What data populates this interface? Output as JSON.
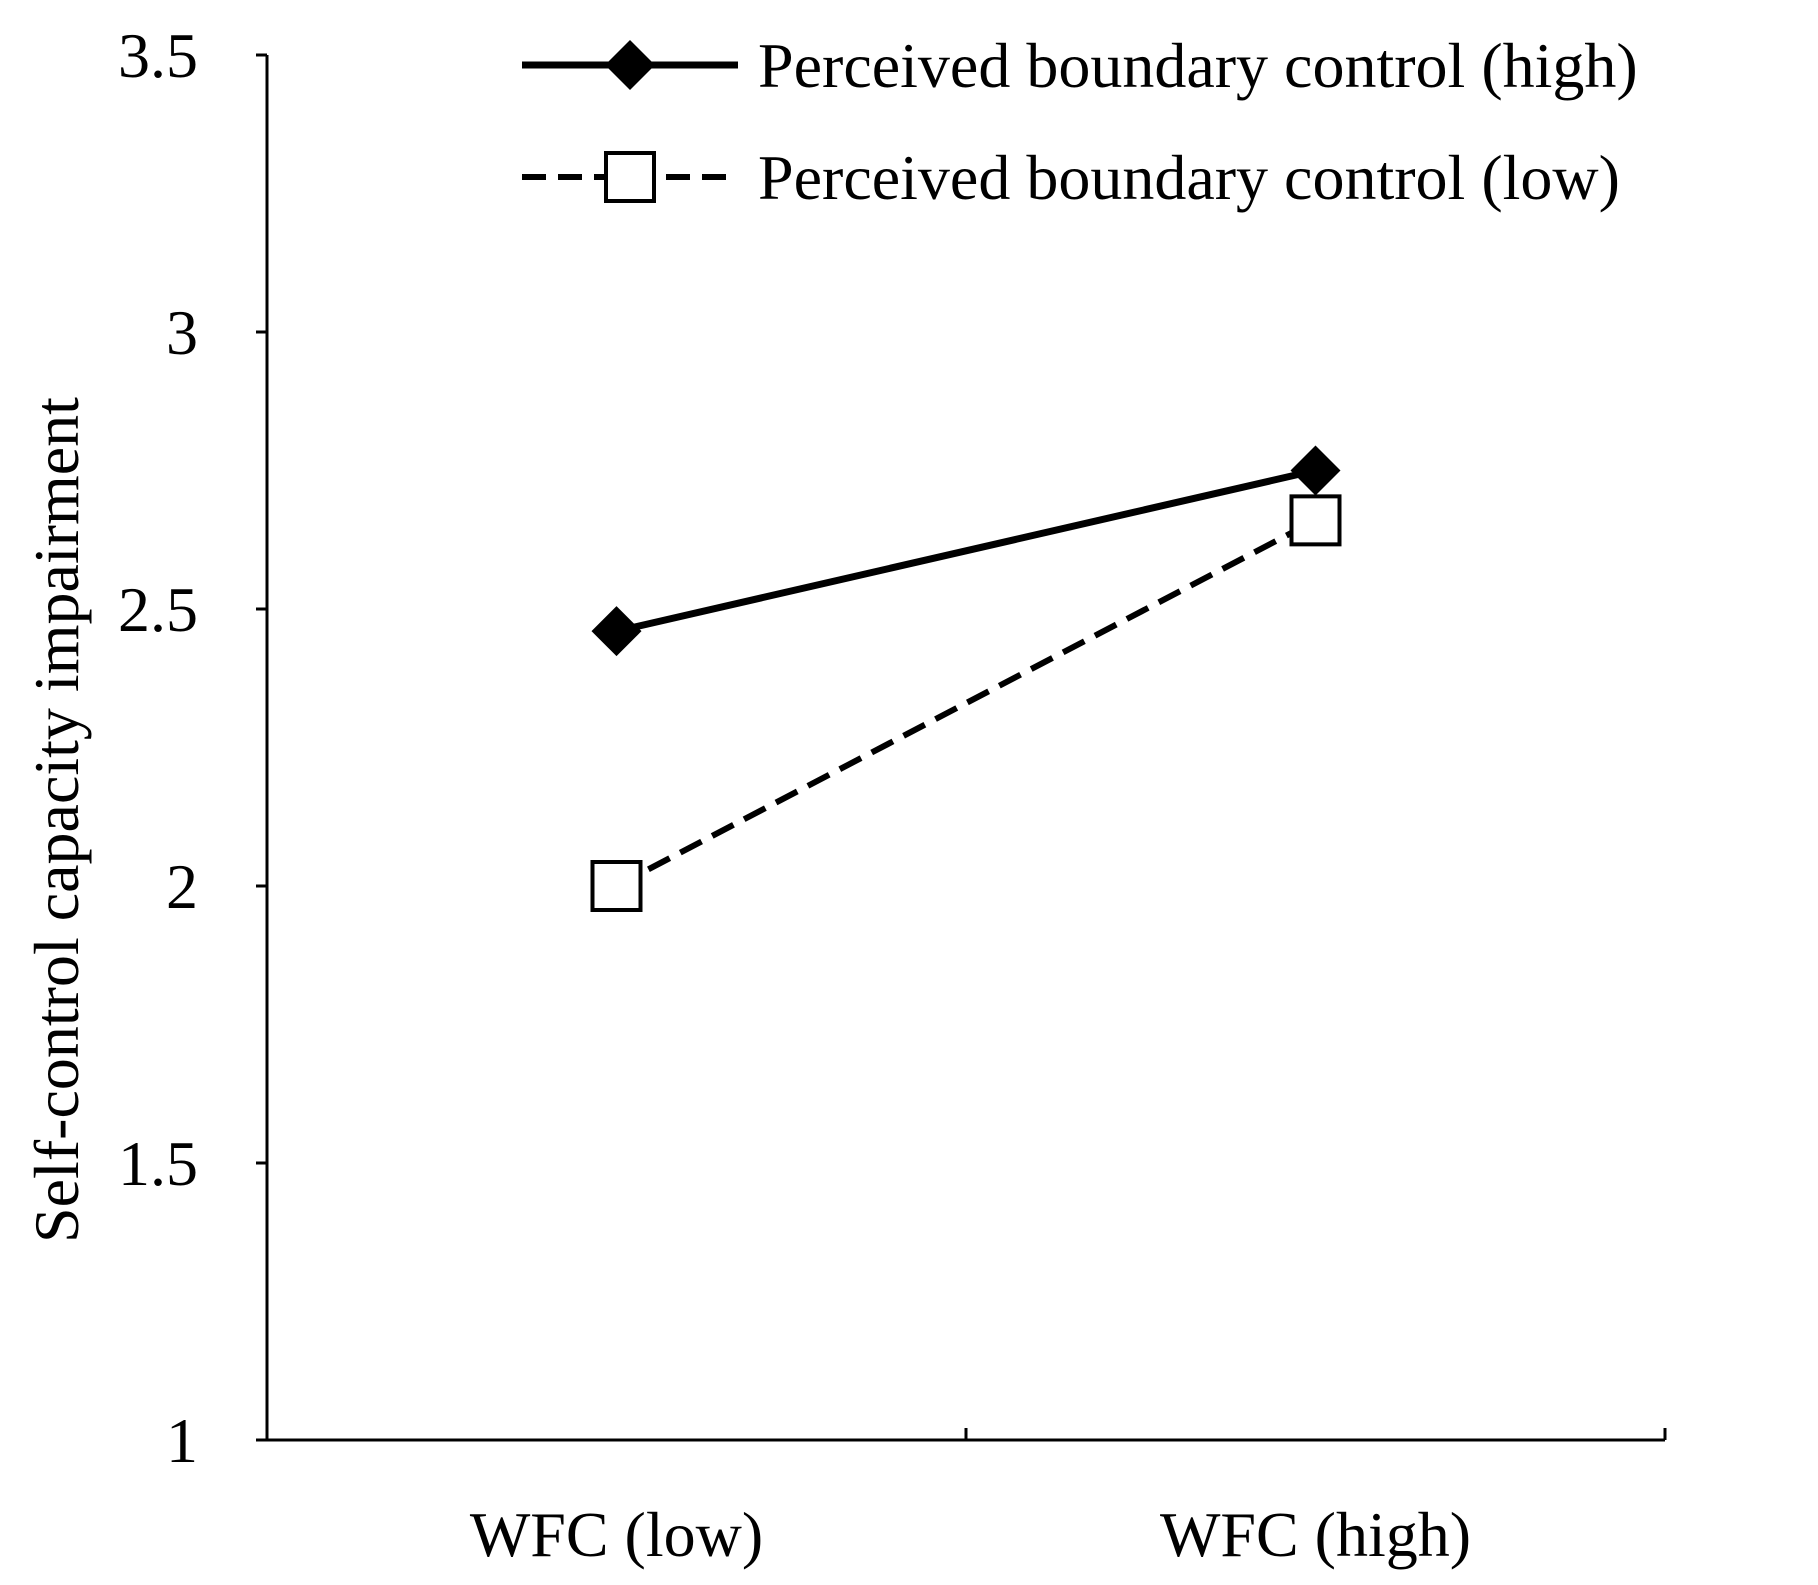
{
  "chart_data": {
    "type": "line",
    "title": "",
    "xlabel": "",
    "ylabel": "Self-control capacity impairment",
    "categories": [
      "WFC (low)",
      "WFC (high)"
    ],
    "ylim": [
      1,
      3.5
    ],
    "yticks": [
      "1",
      "1.5",
      "2",
      "2.5",
      "3",
      "3.5"
    ],
    "grid": false,
    "legend_position": "top-right",
    "series": [
      {
        "name": "Perceived boundary control (high)",
        "values": [
          2.46,
          2.75
        ],
        "line_style": "solid",
        "marker": "filled-diamond",
        "color": "#000000"
      },
      {
        "name": "Perceived boundary control (low)",
        "values": [
          2.0,
          2.66
        ],
        "line_style": "dashed",
        "marker": "open-square",
        "color": "#000000"
      }
    ]
  }
}
